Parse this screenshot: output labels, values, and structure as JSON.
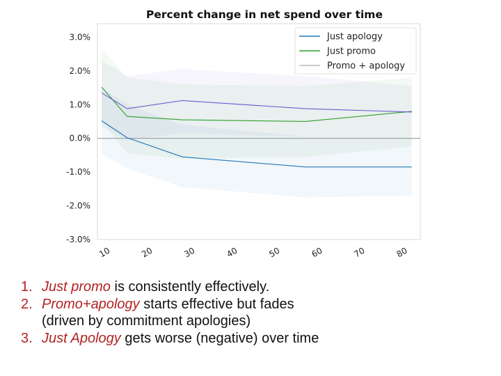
{
  "chart_data": {
    "type": "line",
    "title": "Percent change in net spend over time",
    "xlabel": "",
    "ylabel": "",
    "x_ticks": [
      10,
      20,
      30,
      40,
      50,
      60,
      70,
      80
    ],
    "y_ticks": [
      "3.0%",
      "2.0%",
      "1.0%",
      "0.0%",
      "-1.0%",
      "-2.0%",
      "-3.0%"
    ],
    "xlim": [
      8,
      84
    ],
    "ylim": [
      -3.0,
      3.4
    ],
    "legend_position": "top-right",
    "series": [
      {
        "name": "Just apology",
        "color": "#1f77b4",
        "x": [
          9,
          15,
          28,
          57,
          82
        ],
        "y": [
          0.52,
          0.02,
          -0.55,
          -0.85,
          -0.85
        ],
        "lower": [
          -0.45,
          -0.9,
          -1.45,
          -1.75,
          -1.7
        ],
        "upper": [
          1.5,
          1.0,
          0.4,
          0.05,
          0.05
        ]
      },
      {
        "name": "Just promo",
        "color": "#2ca02c",
        "x": [
          9,
          15,
          28,
          57,
          82
        ],
        "y": [
          1.52,
          0.65,
          0.55,
          0.5,
          0.8
        ],
        "lower": [
          0.5,
          -0.45,
          -0.6,
          -0.55,
          -0.25
        ],
        "upper": [
          2.65,
          1.8,
          1.6,
          1.55,
          1.8
        ]
      },
      {
        "name": "Promo + apology",
        "color": "#6a5acd",
        "x": [
          9,
          15,
          28,
          57,
          82
        ],
        "y": [
          1.35,
          0.88,
          1.12,
          0.88,
          0.78
        ],
        "lower": [
          0.35,
          -0.05,
          0.15,
          0.05,
          0.05
        ],
        "upper": [
          2.3,
          1.85,
          2.05,
          1.85,
          1.55
        ]
      }
    ]
  },
  "notes": [
    {
      "num": "1.",
      "em": "Just promo",
      "rest": " is consistently effectively.",
      "cont": ""
    },
    {
      "num": "2.",
      "em": "Promo+apology",
      "rest": " starts effective but fades",
      "cont": "(driven by commitment apologies)"
    },
    {
      "num": "3.",
      "em": "Just Apology",
      "rest": " gets worse (negative) over time",
      "cont": ""
    }
  ]
}
